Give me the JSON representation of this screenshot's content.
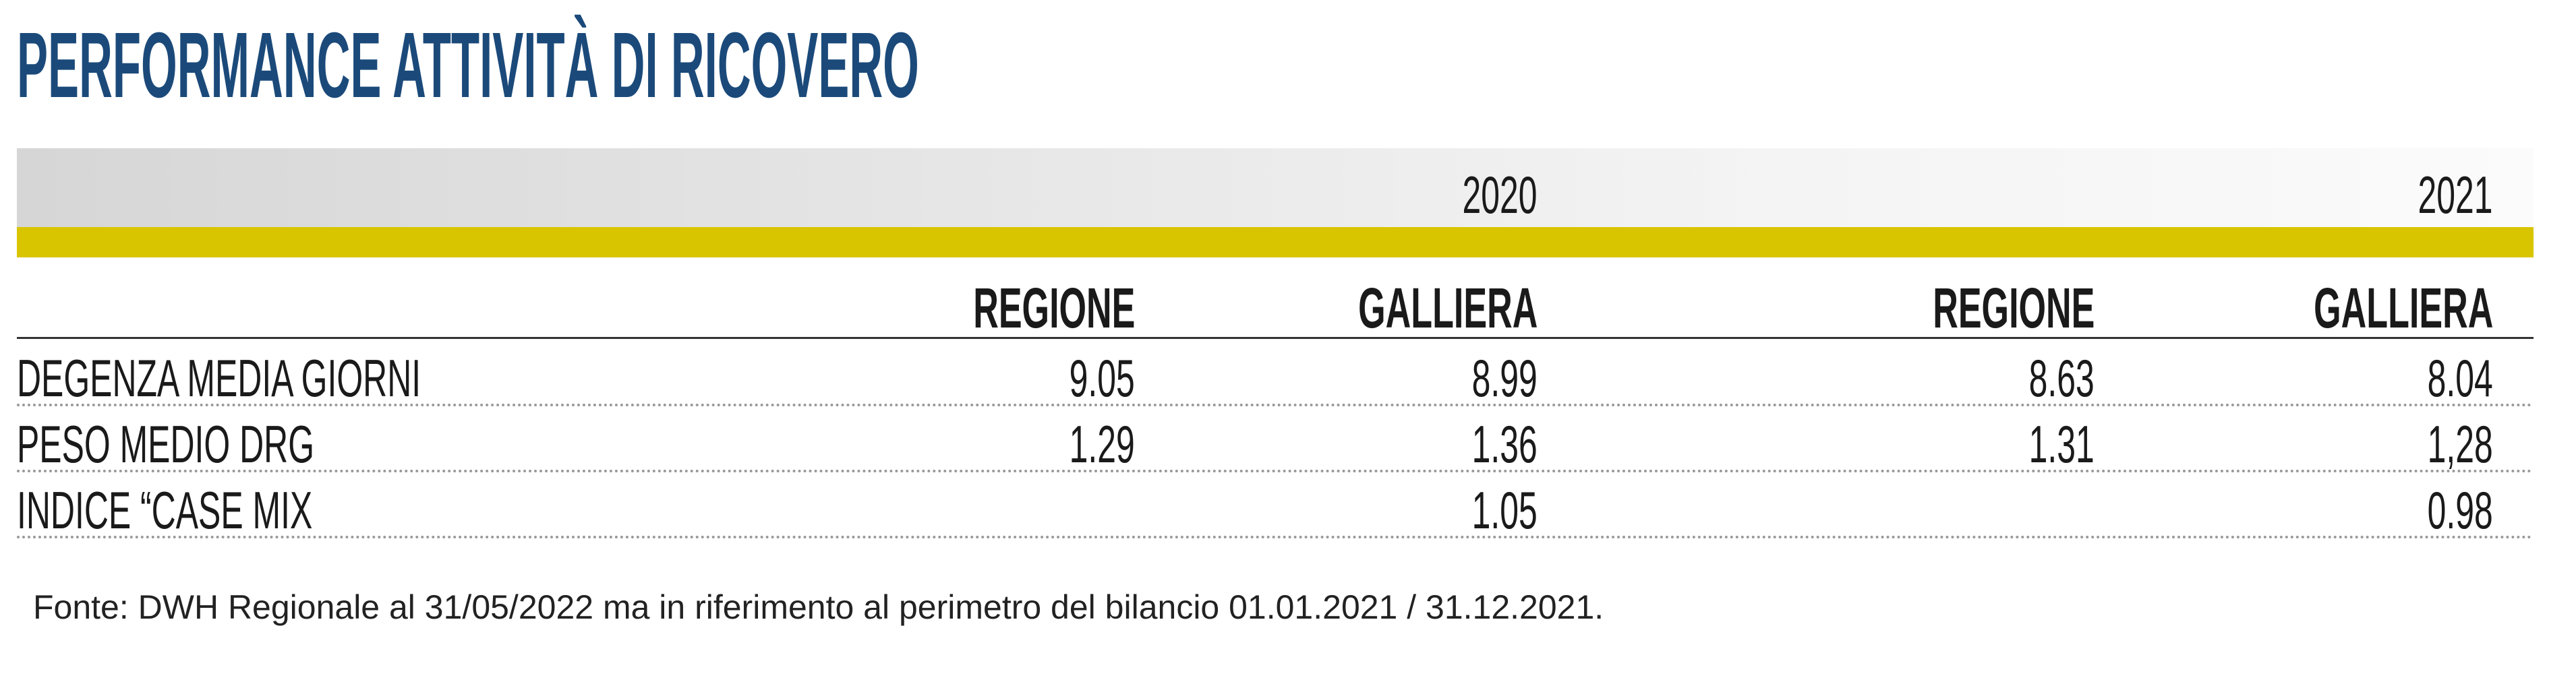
{
  "header": {
    "title": "PERFORMANCE ATTIVITÀ DI RICOVERO"
  },
  "table": {
    "years": [
      "2020",
      "2021"
    ],
    "columns": [
      "REGIONE",
      "GALLIERA",
      "REGIONE",
      "GALLIERA"
    ],
    "rows": [
      [
        "DEGENZA MEDIA GIORNI",
        "9.05",
        "8.99",
        "8.63",
        "8.04"
      ],
      [
        "PESO MEDIO DRG",
        "1.29",
        "1.36",
        "1.31",
        "1,28"
      ],
      [
        "INDICE “CASE MIX",
        null,
        "1.05",
        null,
        "0.98"
      ]
    ]
  },
  "footnote": "Fonte: DWH Regionale al 31/05/2022 ma in riferimento al perimetro del bilancio 01.01.2021 / 31.12.2021."
}
